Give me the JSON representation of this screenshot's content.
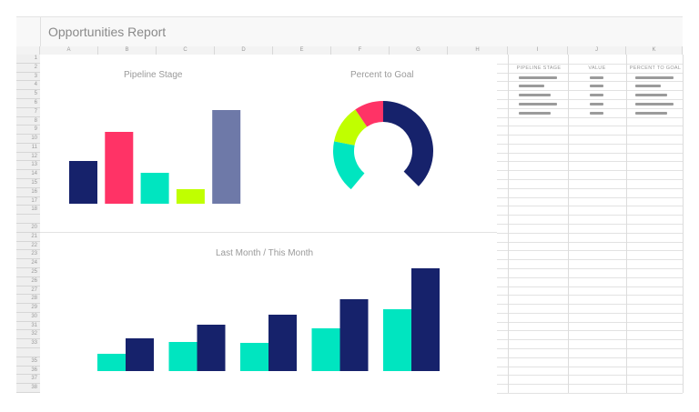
{
  "sheet_title": "Opportunities Report",
  "columns": [
    "A",
    "B",
    "C",
    "D",
    "E",
    "F",
    "G",
    "H",
    "I",
    "J",
    "K"
  ],
  "rows": [
    "1",
    "2",
    "3",
    "4",
    "5",
    "6",
    "7",
    "8",
    "9",
    "10",
    "11",
    "12",
    "13",
    "14",
    "15",
    "16",
    "17",
    "18",
    "",
    "20",
    "21",
    "22",
    "23",
    "24",
    "25",
    "26",
    "27",
    "28",
    "29",
    "30",
    "31",
    "32",
    "33",
    "",
    "35",
    "36",
    "37",
    "38"
  ],
  "table": {
    "headers": [
      "PIPELINE STAGE",
      "VALUE",
      "PERCENT TO GOAL"
    ],
    "placeholder_rows": 5
  },
  "colors": {
    "navy": "#16226b",
    "pink": "#ff3366",
    "teal": "#00e5c0",
    "lime": "#c0ff00",
    "slate": "#6e79a8"
  },
  "chart_data": [
    {
      "type": "bar",
      "title": "Pipeline Stage",
      "values": [
        47,
        79,
        34,
        16,
        103
      ],
      "colors": [
        "#16226b",
        "#ff3366",
        "#00e5c0",
        "#c0ff00",
        "#6e79a8"
      ]
    },
    {
      "type": "pie",
      "title": "Percent to Goal",
      "style": "donut",
      "segments": [
        {
          "value": 37.5,
          "color": "#16226b"
        },
        {
          "value": 23.6,
          "color": "none"
        },
        {
          "value": 17.0,
          "color": "#00e5c0"
        },
        {
          "value": 12.5,
          "color": "#c0ff00"
        },
        {
          "value": 9.4,
          "color": "#ff3366"
        }
      ]
    },
    {
      "type": "bar",
      "title": "Last Month / This Month",
      "series": [
        {
          "values": [
            19,
            32,
            31,
            47,
            68
          ],
          "color": "#00e5c0"
        },
        {
          "values": [
            36,
            51,
            62,
            79,
            113
          ],
          "color": "#16226b"
        }
      ]
    }
  ]
}
